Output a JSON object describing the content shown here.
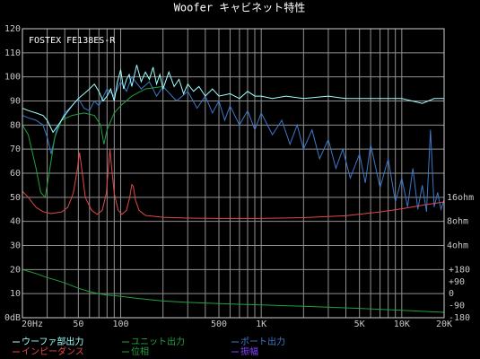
{
  "chart_data": {
    "type": "line",
    "title": "Woofer キャビネット特性",
    "annotation": "FOSTEX FE138ES-R",
    "xscale": "log",
    "xlim": [
      20,
      20000
    ],
    "xticks": [
      {
        "value": 20,
        "label": "20Hz"
      },
      50,
      100,
      500,
      {
        "value": 1000,
        "label": "1K"
      },
      {
        "value": 5000,
        "label": "5K"
      },
      {
        "value": 10000,
        "label": "10K"
      },
      {
        "value": 20000,
        "label": "20K"
      }
    ],
    "xgrid": [
      20,
      30,
      40,
      50,
      60,
      70,
      80,
      90,
      100,
      200,
      300,
      400,
      500,
      600,
      700,
      800,
      900,
      1000,
      2000,
      3000,
      4000,
      5000,
      6000,
      7000,
      8000,
      9000,
      10000,
      20000
    ],
    "ylim": [
      0,
      120
    ],
    "yticks": [
      {
        "value": 0,
        "label": "0dB"
      },
      10,
      20,
      30,
      40,
      50,
      60,
      70,
      80,
      90,
      100,
      110,
      120
    ],
    "y2scale": "log",
    "y2lim": [
      0.5,
      2048
    ],
    "y2ticks": [
      {
        "value": 16,
        "label": "16ohm"
      },
      {
        "value": 8,
        "label": "8ohm"
      },
      {
        "value": 4,
        "label": "4ohm"
      }
    ],
    "y3lim": [
      -180,
      1980
    ],
    "y3ticks": [
      {
        "value": 180,
        "label": "+180"
      },
      {
        "value": 90,
        "label": "+90"
      },
      0,
      -90,
      -180
    ],
    "grid": true,
    "series": [
      {
        "name": "ウーファ部出力",
        "color": "#a0ffff",
        "axis": "y",
        "x": [
          20,
          22,
          25,
          28,
          30,
          33,
          36,
          40,
          45,
          50,
          55,
          60,
          65,
          70,
          75,
          80,
          85,
          90,
          95,
          100,
          105,
          110,
          115,
          120,
          130,
          140,
          150,
          160,
          170,
          180,
          190,
          200,
          220,
          240,
          260,
          280,
          300,
          330,
          360,
          400,
          450,
          500,
          600,
          700,
          800,
          900,
          1000,
          1200,
          1500,
          2000,
          3000,
          4000,
          5000,
          7000,
          10000,
          14000,
          17000,
          20000
        ],
        "values": [
          87,
          86,
          85,
          84,
          82,
          77,
          80,
          84,
          88,
          91,
          93,
          95,
          97,
          94,
          90,
          92,
          95,
          90,
          98,
          103,
          95,
          99,
          101,
          96,
          105,
          98,
          102,
          99,
          104,
          97,
          101,
          95,
          102,
          96,
          99,
          93,
          97,
          94,
          96,
          92,
          95,
          92,
          93,
          91,
          94,
          92,
          92,
          91,
          92,
          91,
          92,
          91,
          91,
          91,
          91,
          89,
          91,
          91
        ]
      },
      {
        "name": "ユニット出力",
        "color": "#20a040",
        "axis": "y",
        "x": [
          20,
          22,
          25,
          27,
          29,
          31,
          34,
          38,
          45,
          55,
          65,
          72,
          76,
          80,
          90,
          100,
          120,
          150,
          200
        ],
        "values": [
          80,
          76,
          62,
          52,
          50,
          60,
          75,
          82,
          84,
          85,
          84,
          80,
          72,
          78,
          85,
          88,
          92,
          95,
          96
        ]
      },
      {
        "name": "ポート出力",
        "color": "#3c78c8",
        "axis": "y",
        "x": [
          20,
          22,
          25,
          28,
          30,
          32,
          35,
          40,
          45,
          50,
          55,
          60,
          65,
          70,
          80,
          90,
          100,
          110,
          120,
          140,
          160,
          180,
          200,
          250,
          300,
          350,
          400,
          450,
          500,
          550,
          600,
          700,
          800,
          900,
          1000,
          1200,
          1400,
          1600,
          1800,
          2000,
          2300,
          2600,
          3000,
          3400,
          3800,
          4300,
          5000,
          5500,
          6000,
          7000,
          8000,
          9000,
          10000,
          11000,
          12000,
          13000,
          14000,
          15000,
          16000,
          17000,
          18000,
          19000,
          20000
        ],
        "values": [
          84,
          83,
          82,
          80,
          75,
          68,
          78,
          85,
          88,
          91,
          87,
          86,
          90,
          88,
          95,
          92,
          98,
          94,
          100,
          95,
          98,
          92,
          96,
          90,
          94,
          87,
          92,
          85,
          90,
          82,
          88,
          80,
          86,
          78,
          85,
          76,
          82,
          72,
          80,
          70,
          78,
          66,
          74,
          62,
          70,
          58,
          68,
          56,
          72,
          54,
          66,
          48,
          58,
          46,
          62,
          45,
          55,
          44,
          78,
          46,
          52,
          45,
          49
        ]
      },
      {
        "name": "インピーダンス",
        "color": "#e04848",
        "axis": "y2",
        "x": [
          20,
          22,
          25,
          28,
          32,
          38,
          42,
          46,
          49,
          51,
          53,
          56,
          62,
          68,
          74,
          79,
          82,
          84,
          86,
          90,
          96,
          102,
          110,
          116,
          120,
          123,
          127,
          135,
          150,
          200,
          300,
          500,
          1000,
          2000,
          4000,
          7000,
          10000,
          15000,
          20000
        ],
        "values": [
          19,
          16,
          12,
          10.6,
          10,
          10.5,
          12,
          18,
          35,
          58,
          35,
          16,
          11,
          9.8,
          11,
          18,
          40,
          64,
          40,
          18,
          11,
          9.8,
          11,
          16,
          23,
          22,
          15,
          11,
          9.5,
          9,
          8.8,
          8.7,
          8.7,
          8.9,
          9.4,
          10.5,
          11.5,
          13,
          14
        ]
      },
      {
        "name": "位相",
        "color": "#20a040",
        "axis": "y3",
        "x": [
          20,
          25,
          30,
          35,
          40,
          50,
          60,
          70,
          80,
          100,
          130,
          160,
          200,
          300,
          500,
          1000,
          2000,
          5000,
          10000,
          20000
        ],
        "values": [
          180,
          150,
          120,
          100,
          80,
          40,
          15,
          0,
          -10,
          -20,
          -35,
          -45,
          -55,
          -65,
          -75,
          -85,
          -95,
          -110,
          -125,
          -140
        ]
      },
      {
        "name": "振幅",
        "color": "#8040ff",
        "axis": "y",
        "x": [],
        "values": []
      }
    ]
  }
}
